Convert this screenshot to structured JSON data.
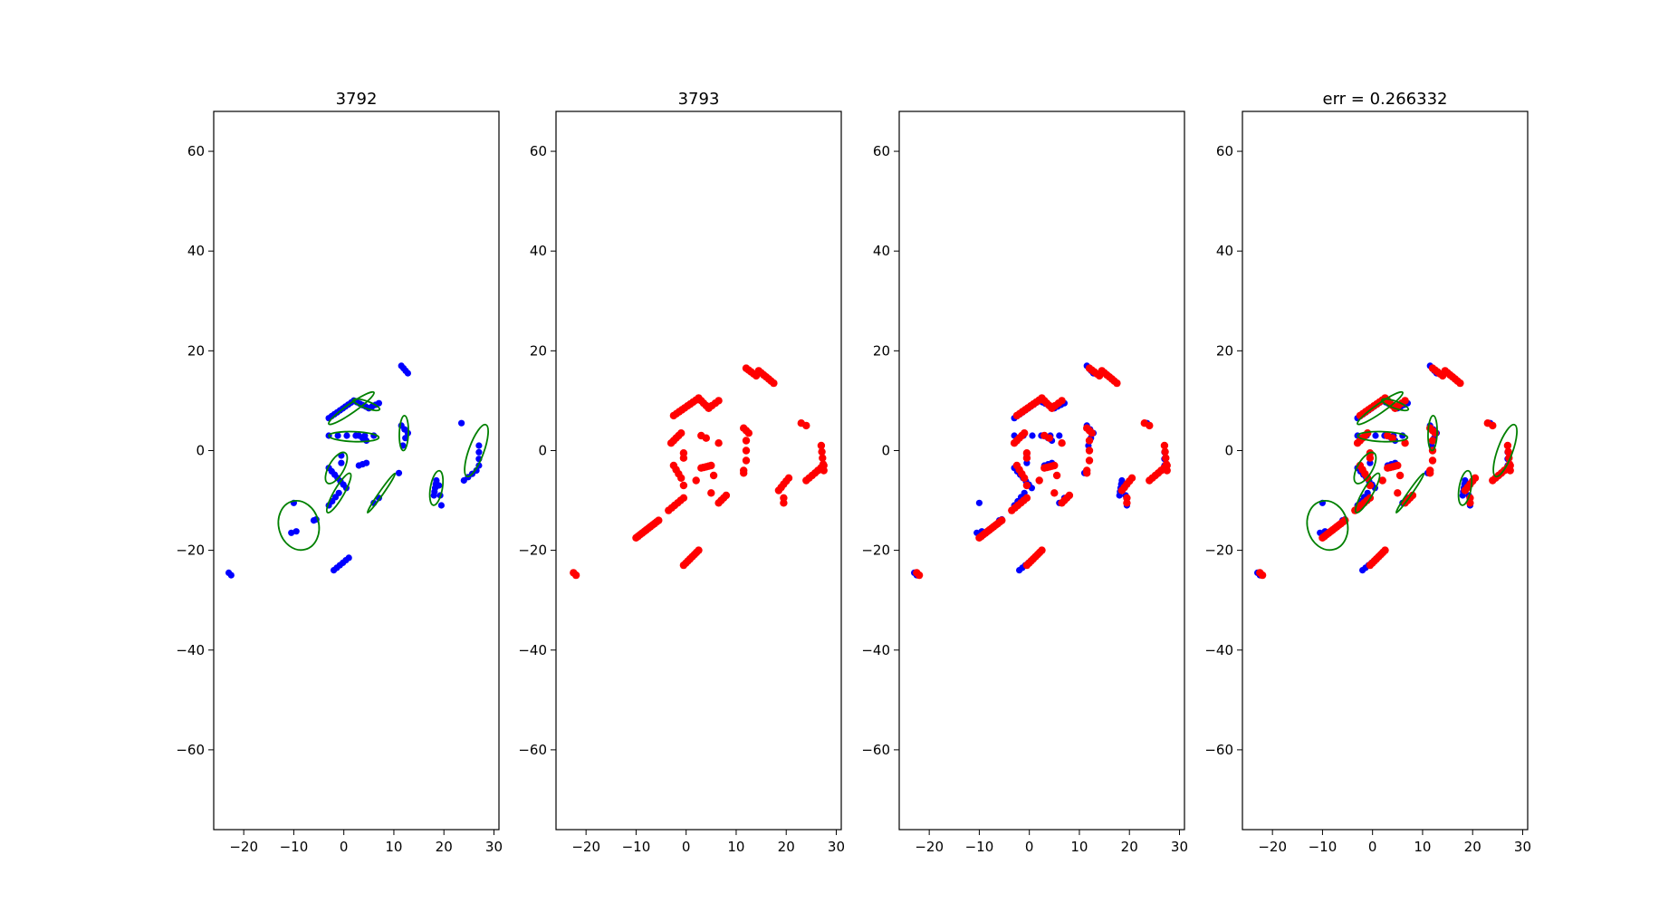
{
  "figure": {
    "colors": {
      "track_points": "#0000ff",
      "measure_points": "#ff0000",
      "ellipse": "#008000",
      "axes": "#000000",
      "background": "#ffffff"
    }
  },
  "chart_data": [
    {
      "type": "scatter",
      "title": "3792",
      "xlim": [
        -26,
        31
      ],
      "ylim": [
        -76,
        68
      ],
      "xticks": [
        -20,
        -10,
        0,
        10,
        20,
        30
      ],
      "yticks": [
        -60,
        -40,
        -20,
        0,
        20,
        40,
        60
      ],
      "grid": false,
      "layers": [
        "track_blue",
        "ellipses"
      ]
    },
    {
      "type": "scatter",
      "title": "3793",
      "xlim": [
        -26,
        31
      ],
      "ylim": [
        -76,
        68
      ],
      "xticks": [
        -20,
        -10,
        0,
        10,
        20,
        30
      ],
      "yticks": [
        -60,
        -40,
        -20,
        0,
        20,
        40,
        60
      ],
      "grid": false,
      "layers": [
        "measure_red"
      ]
    },
    {
      "type": "scatter",
      "title": "",
      "xlim": [
        -26,
        31
      ],
      "ylim": [
        -76,
        68
      ],
      "xticks": [
        -20,
        -10,
        0,
        10,
        20,
        30
      ],
      "yticks": [
        -60,
        -40,
        -20,
        0,
        20,
        40,
        60
      ],
      "grid": false,
      "layers": [
        "track_blue",
        "measure_red"
      ]
    },
    {
      "type": "scatter",
      "title": "err = 0.266332",
      "xlim": [
        -26,
        31
      ],
      "ylim": [
        -76,
        68
      ],
      "xticks": [
        -20,
        -10,
        0,
        10,
        20,
        30
      ],
      "yticks": [
        -60,
        -40,
        -20,
        0,
        20,
        40,
        60
      ],
      "grid": false,
      "layers": [
        "track_blue",
        "measure_red",
        "ellipses"
      ]
    }
  ],
  "series": {
    "track_blue": [
      {
        "from": [
          -3,
          6.5
        ],
        "to": [
          2,
          10
        ],
        "n": 10
      },
      {
        "from": [
          2,
          10
        ],
        "to": [
          5,
          8.5
        ],
        "n": 6
      },
      {
        "from": [
          5,
          8.5
        ],
        "to": [
          7,
          9.5
        ],
        "n": 4
      },
      {
        "from": [
          -3,
          3
        ],
        "to": [
          6,
          3
        ],
        "n": 6
      },
      {
        "from": [
          3,
          3
        ],
        "to": [
          4.5,
          2
        ],
        "n": 3
      },
      {
        "from": [
          11.5,
          17
        ],
        "to": [
          12.8,
          15.5
        ],
        "n": 4
      },
      {
        "from": [
          11.5,
          5
        ],
        "to": [
          12.8,
          3.5
        ],
        "n": 3
      },
      {
        "from": [
          11.8,
          1
        ],
        "to": [
          12.3,
          2.5
        ],
        "n": 2
      },
      {
        "from": [
          -3,
          -3.5
        ],
        "to": [
          0.5,
          -7.5
        ],
        "n": 7
      },
      {
        "from": [
          -0.5,
          -1
        ],
        "to": [
          -0.5,
          -2.5
        ],
        "n": 2
      },
      {
        "from": [
          3,
          -3
        ],
        "to": [
          4.5,
          -2.5
        ],
        "n": 3
      },
      {
        "from": [
          -3,
          -11
        ],
        "to": [
          -1,
          -8.5
        ],
        "n": 4
      },
      {
        "from": [
          -2,
          -24
        ],
        "to": [
          1,
          -21.5
        ],
        "n": 6
      },
      {
        "from": [
          -23,
          -24.5
        ],
        "to": [
          -22.5,
          -25
        ],
        "n": 2
      },
      {
        "from": [
          -10.5,
          -16.5
        ],
        "to": [
          -9.5,
          -16.2
        ],
        "n": 2
      },
      {
        "from": [
          -6,
          -14
        ],
        "to": [
          -5.5,
          -13.8
        ],
        "n": 2
      },
      {
        "from": [
          -10,
          -10.5
        ],
        "to": [
          -10,
          -10.5
        ],
        "n": 1
      },
      {
        "from": [
          7,
          -9.5
        ],
        "to": [
          6,
          -10.5
        ],
        "n": 2
      },
      {
        "from": [
          11,
          -4.5
        ],
        "to": [
          11,
          -4.5
        ],
        "n": 1
      },
      {
        "from": [
          18,
          -9
        ],
        "to": [
          18.5,
          -6
        ],
        "n": 5
      },
      {
        "from": [
          19,
          -7
        ],
        "to": [
          19.5,
          -11
        ],
        "n": 3
      },
      {
        "from": [
          23.5,
          5.5
        ],
        "to": [
          23.5,
          5.5
        ],
        "n": 1
      },
      {
        "from": [
          24,
          -6
        ],
        "to": [
          26.5,
          -4
        ],
        "n": 4
      },
      {
        "from": [
          27,
          1
        ],
        "to": [
          27,
          -3
        ],
        "n": 4
      }
    ],
    "measure_red": [
      {
        "from": [
          -2.5,
          7
        ],
        "to": [
          2.5,
          10.5
        ],
        "n": 10
      },
      {
        "from": [
          2.5,
          10.5
        ],
        "to": [
          4.5,
          8.5
        ],
        "n": 5
      },
      {
        "from": [
          4.5,
          8.5
        ],
        "to": [
          6.5,
          10
        ],
        "n": 4
      },
      {
        "from": [
          12,
          16.5
        ],
        "to": [
          14,
          15
        ],
        "n": 5
      },
      {
        "from": [
          14.5,
          16
        ],
        "to": [
          17.5,
          13.5
        ],
        "n": 7
      },
      {
        "from": [
          -3,
          1.5
        ],
        "to": [
          -1,
          3.5
        ],
        "n": 5
      },
      {
        "from": [
          3,
          3
        ],
        "to": [
          4,
          2.5
        ],
        "n": 2
      },
      {
        "from": [
          6.5,
          1.5
        ],
        "to": [
          6.5,
          1.5
        ],
        "n": 1
      },
      {
        "from": [
          11.5,
          4.5
        ],
        "to": [
          12.5,
          3.5
        ],
        "n": 3
      },
      {
        "from": [
          12,
          2
        ],
        "to": [
          12,
          0
        ],
        "n": 2
      },
      {
        "from": [
          11.5,
          -4
        ],
        "to": [
          11.5,
          -4.5
        ],
        "n": 2
      },
      {
        "from": [
          -2.5,
          -3
        ],
        "to": [
          -1,
          -5.5
        ],
        "n": 4
      },
      {
        "from": [
          -0.5,
          -7
        ],
        "to": [
          -0.5,
          -7
        ],
        "n": 1
      },
      {
        "from": [
          3,
          -3.5
        ],
        "to": [
          5,
          -3
        ],
        "n": 5
      },
      {
        "from": [
          -0.5,
          -0.5
        ],
        "to": [
          -0.5,
          -1.5
        ],
        "n": 2
      },
      {
        "from": [
          5.5,
          -5
        ],
        "to": [
          5.5,
          -5
        ],
        "n": 1
      },
      {
        "from": [
          12,
          -2
        ],
        "to": [
          12,
          -2
        ],
        "n": 1
      },
      {
        "from": [
          5,
          -8.5
        ],
        "to": [
          5,
          -8.5
        ],
        "n": 1
      },
      {
        "from": [
          2,
          -6
        ],
        "to": [
          2,
          -6
        ],
        "n": 1
      },
      {
        "from": [
          -3.5,
          -12
        ],
        "to": [
          -0.5,
          -9.5
        ],
        "n": 6
      },
      {
        "from": [
          6.5,
          -10.5
        ],
        "to": [
          8,
          -9
        ],
        "n": 4
      },
      {
        "from": [
          -10,
          -17.5
        ],
        "to": [
          -5.5,
          -14
        ],
        "n": 12
      },
      {
        "from": [
          -0.5,
          -23
        ],
        "to": [
          2.5,
          -20
        ],
        "n": 8
      },
      {
        "from": [
          -22.5,
          -24.5
        ],
        "to": [
          -22,
          -25
        ],
        "n": 2
      },
      {
        "from": [
          18.5,
          -8
        ],
        "to": [
          20.5,
          -5.5
        ],
        "n": 5
      },
      {
        "from": [
          19.5,
          -9.5
        ],
        "to": [
          19.5,
          -10.5
        ],
        "n": 2
      },
      {
        "from": [
          23,
          5.5
        ],
        "to": [
          24,
          5
        ],
        "n": 2
      },
      {
        "from": [
          24,
          -6
        ],
        "to": [
          27.5,
          -3
        ],
        "n": 7
      },
      {
        "from": [
          27,
          1
        ],
        "to": [
          27.5,
          -4
        ],
        "n": 5
      }
    ],
    "ellipses": [
      {
        "cx": 1.5,
        "cy": 8.5,
        "rx": 5.5,
        "ry": 0.9,
        "angle": 35
      },
      {
        "cx": 4.5,
        "cy": 9.2,
        "rx": 2.8,
        "ry": 0.7,
        "angle": -20
      },
      {
        "cx": 2,
        "cy": 2.8,
        "rx": 5,
        "ry": 1,
        "angle": -2
      },
      {
        "cx": 12,
        "cy": 3.5,
        "rx": 3.5,
        "ry": 0.9,
        "angle": 88
      },
      {
        "cx": -1.5,
        "cy": -3.5,
        "rx": 3.5,
        "ry": 1.5,
        "angle": 60
      },
      {
        "cx": -1,
        "cy": -8.5,
        "rx": 4.5,
        "ry": 1,
        "angle": 60
      },
      {
        "cx": 7.5,
        "cy": -8.5,
        "rx": 4.8,
        "ry": 0.4,
        "angle": 55
      },
      {
        "cx": -9,
        "cy": -15,
        "rx": 4,
        "ry": 5,
        "angle": 15
      },
      {
        "cx": 18.5,
        "cy": -7.5,
        "rx": 3.5,
        "ry": 1.2,
        "angle": 80
      },
      {
        "cx": 26.5,
        "cy": 0,
        "rx": 5.5,
        "ry": 1.5,
        "angle": 70
      }
    ]
  }
}
